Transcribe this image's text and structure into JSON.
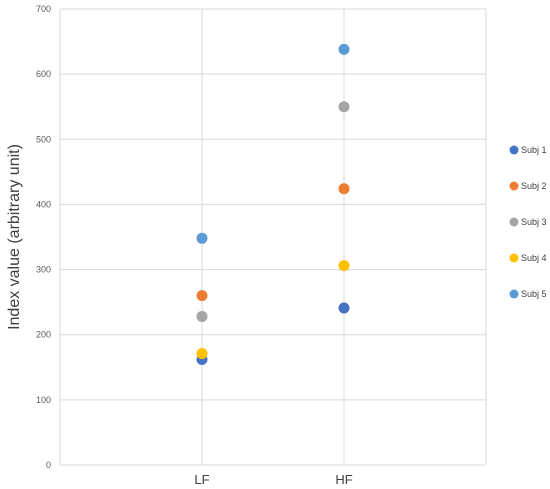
{
  "chart_data": {
    "type": "scatter",
    "categories": [
      "LF",
      "HF"
    ],
    "ylabel": "Index value (arbitrary unit)",
    "xlabel": "",
    "ylim": [
      0,
      700
    ],
    "yticks": [
      0,
      100,
      200,
      300,
      400,
      500,
      600,
      700
    ],
    "grid": true,
    "legend_position": "right",
    "series": [
      {
        "name": "Subj 1",
        "color": "#4472C4",
        "values": [
          162,
          241
        ]
      },
      {
        "name": "Subj 2",
        "color": "#ED7D31",
        "values": [
          260,
          424
        ]
      },
      {
        "name": "Subj 3",
        "color": "#A5A5A5",
        "values": [
          228,
          550
        ]
      },
      {
        "name": "Subj 4",
        "color": "#FFC000",
        "values": [
          171,
          306
        ]
      },
      {
        "name": "Subj 5",
        "color": "#5B9BD5",
        "values": [
          348,
          638
        ]
      }
    ]
  }
}
